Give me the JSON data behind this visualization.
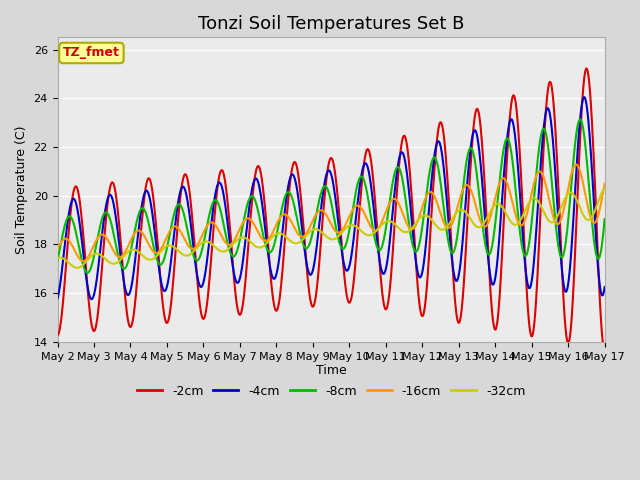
{
  "title": "Tonzi Soil Temperatures Set B",
  "xlabel": "Time",
  "ylabel": "Soil Temperature (C)",
  "xlim": [
    0,
    15
  ],
  "ylim": [
    14,
    26.5
  ],
  "yticks": [
    14,
    16,
    18,
    20,
    22,
    24,
    26
  ],
  "xtick_labels": [
    "May 2",
    "May 3",
    "May 4",
    "May 5",
    "May 6",
    "May 7",
    "May 8",
    "May 9",
    "May 10",
    "May 11",
    "May 12",
    "May 13",
    "May 14",
    "May 15",
    "May 16",
    "May 17"
  ],
  "annotation_text": "TZ_fmet",
  "annotation_color": "#cc0000",
  "annotation_bg": "#ffff99",
  "annotation_border": "#aaaa00",
  "series_colors": [
    "#dd0000",
    "#0000cc",
    "#00bb00",
    "#ff9900",
    "#cccc00"
  ],
  "series_labels": [
    "-2cm",
    "-4cm",
    "-8cm",
    "-16cm",
    "-32cm"
  ],
  "series_linewidth": 1.5,
  "bg_color": "#d8d8d8",
  "plot_bg_color": "#ebebeb",
  "grid_color": "#ffffff",
  "title_fontsize": 13,
  "axis_fontsize": 9,
  "tick_fontsize": 8,
  "legend_fontsize": 9
}
